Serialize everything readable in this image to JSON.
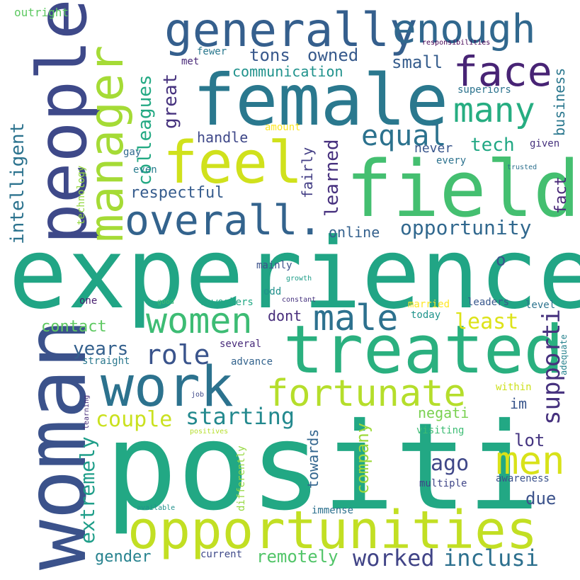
{
  "words": [
    {
      "text": "positi",
      "color": "#22a884"
    },
    {
      "text": "experience",
      "color": "#21a585"
    },
    {
      "text": "woman",
      "color": "#3b528b"
    },
    {
      "text": "female",
      "color": "#2a788e"
    },
    {
      "text": "field",
      "color": "#44bf70"
    },
    {
      "text": "treated",
      "color": "#2ab07f"
    },
    {
      "text": "people",
      "color": "#3e4989"
    },
    {
      "text": "work",
      "color": "#2c728e"
    },
    {
      "text": "opportunities",
      "color": "#c2df23"
    },
    {
      "text": "generally",
      "color": "#355f8d"
    },
    {
      "text": "feel",
      "color": "#d0e11c"
    },
    {
      "text": "manager",
      "color": "#a5db36"
    },
    {
      "text": "enough",
      "color": "#31688e"
    },
    {
      "text": "overall.",
      "color": "#33638d"
    },
    {
      "text": "fortunate",
      "color": "#b5de2b"
    },
    {
      "text": "women",
      "color": "#3dbc74"
    },
    {
      "text": "face",
      "color": "#482475"
    },
    {
      "text": "many",
      "color": "#26ad81"
    },
    {
      "text": "male",
      "color": "#2d718e"
    },
    {
      "text": "men",
      "color": "#d8e219"
    },
    {
      "text": "role",
      "color": "#3a548c"
    },
    {
      "text": "equal",
      "color": "#2c728e"
    },
    {
      "text": "supporti",
      "color": "#46317e"
    },
    {
      "text": "starting",
      "color": "#23898e"
    },
    {
      "text": "worked",
      "color": "#414487"
    },
    {
      "text": "inclusi",
      "color": "#2d708e"
    },
    {
      "text": "opportunity",
      "color": "#31688e"
    },
    {
      "text": "intelligent",
      "color": "#2c738e"
    },
    {
      "text": "colleagues",
      "color": "#23a983"
    },
    {
      "text": "least",
      "color": "#dde318"
    },
    {
      "text": "couple",
      "color": "#cae11f"
    },
    {
      "text": "extremely",
      "color": "#1f9e89"
    },
    {
      "text": "company",
      "color": "#9dd93b"
    },
    {
      "text": "great",
      "color": "#46327e"
    },
    {
      "text": "ago",
      "color": "#3f4788"
    },
    {
      "text": "remotely",
      "color": "#52c569"
    },
    {
      "text": "gender",
      "color": "#26828e"
    },
    {
      "text": "years",
      "color": "#34608d"
    },
    {
      "text": "contact",
      "color": "#5ec962"
    },
    {
      "text": "tons",
      "color": "#38588c"
    },
    {
      "text": "owned",
      "color": "#375a8c"
    },
    {
      "text": "small",
      "color": "#365d8d"
    },
    {
      "text": "communication",
      "color": "#20928c"
    },
    {
      "text": "business",
      "color": "#2a778e"
    },
    {
      "text": "tech",
      "color": "#22a884"
    },
    {
      "text": "learned",
      "color": "#46307e"
    },
    {
      "text": "fairly",
      "color": "#433e85"
    },
    {
      "text": "handle",
      "color": "#3f4889"
    },
    {
      "text": "respectful",
      "color": "#365c8d"
    },
    {
      "text": "fact",
      "color": "#482878"
    },
    {
      "text": "online",
      "color": "#34618d"
    },
    {
      "text": "o",
      "color": "#39568c"
    },
    {
      "text": "towards",
      "color": "#32658e"
    },
    {
      "text": "negati",
      "color": "#7ad151"
    },
    {
      "text": "im",
      "color": "#39558c"
    },
    {
      "text": "lot",
      "color": "#453581"
    },
    {
      "text": "due",
      "color": "#3b528b"
    },
    {
      "text": "dont",
      "color": "#472d7b"
    },
    {
      "text": "never",
      "color": "#39568c"
    },
    {
      "text": "outright",
      "color": "#5ec962"
    },
    {
      "text": "fewer",
      "color": "#2a788e"
    },
    {
      "text": "met",
      "color": "#482878"
    },
    {
      "text": "responsibilities",
      "color": "#440154"
    },
    {
      "text": "superiors",
      "color": "#2c738e"
    },
    {
      "text": "amount",
      "color": "#fde725"
    },
    {
      "text": "gay",
      "color": "#31688e"
    },
    {
      "text": "even",
      "color": "#287c8e"
    },
    {
      "text": "technology",
      "color": "#95d840"
    },
    {
      "text": "every",
      "color": "#2c728e"
    },
    {
      "text": "given",
      "color": "#46327e"
    },
    {
      "text": "trusted",
      "color": "#2d708e"
    },
    {
      "text": "mainly",
      "color": "#3b528b"
    },
    {
      "text": "growth",
      "color": "#1f9e89"
    },
    {
      "text": "odd",
      "color": "#21918c"
    },
    {
      "text": "constant",
      "color": "#46337f"
    },
    {
      "text": "good",
      "color": "#3dbc74"
    },
    {
      "text": "one",
      "color": "#481f70"
    },
    {
      "text": "coworkers",
      "color": "#22a884"
    },
    {
      "text": "married",
      "color": "#fde725"
    },
    {
      "text": "leaders",
      "color": "#38588c"
    },
    {
      "text": "level",
      "color": "#2c738e"
    },
    {
      "text": "today",
      "color": "#1f948c"
    },
    {
      "text": "several",
      "color": "#472a7a"
    },
    {
      "text": "advance",
      "color": "#33638d"
    },
    {
      "text": "straight",
      "color": "#2a788e"
    },
    {
      "text": "adequate",
      "color": "#26828e"
    },
    {
      "text": "within",
      "color": "#cde11d"
    },
    {
      "text": "learning",
      "color": "#472c7a"
    },
    {
      "text": "job",
      "color": "#3e4989"
    },
    {
      "text": "positives",
      "color": "#b5de2b"
    },
    {
      "text": "visiting",
      "color": "#3dbc74"
    },
    {
      "text": "differently",
      "color": "#95d840"
    },
    {
      "text": "multiple",
      "color": "#404688"
    },
    {
      "text": "awareness",
      "color": "#3b528b"
    },
    {
      "text": "available",
      "color": "#20928c"
    },
    {
      "text": "immense",
      "color": "#2d718e"
    },
    {
      "text": "current",
      "color": "#3e4989"
    }
  ]
}
